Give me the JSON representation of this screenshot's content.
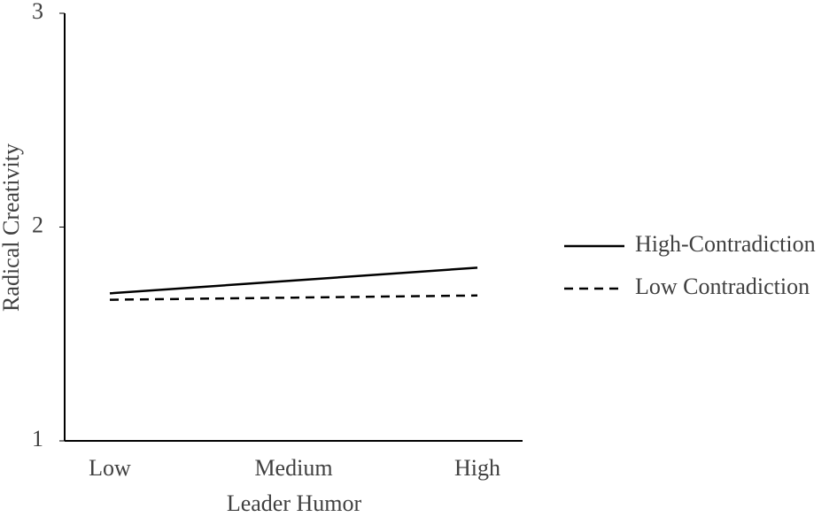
{
  "chart_data": {
    "type": "line",
    "x_label": "Leader Humor",
    "y_label": "Radical Creativity",
    "categories": [
      "Low",
      "Medium",
      "High"
    ],
    "series": [
      {
        "name": "High-Contradiction",
        "color": "#000000",
        "line_style": "solid",
        "values": [
          1.69,
          1.75,
          1.81
        ]
      },
      {
        "name": "Low Contradiction",
        "color": "#000000",
        "line_style": "dashed",
        "values": [
          1.66,
          1.67,
          1.68
        ]
      }
    ],
    "ylim": [
      1,
      3
    ],
    "yticks": [
      1,
      2,
      3
    ],
    "grid": false,
    "legend": "right"
  }
}
